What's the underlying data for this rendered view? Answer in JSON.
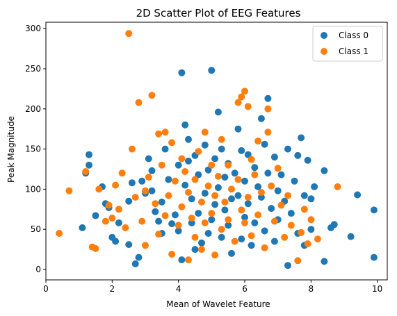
{
  "chart_data": {
    "type": "scatter",
    "title": "2D Scatter Plot of EEG Features",
    "xlabel": "Mean of Wavelet Feature",
    "ylabel": "Peak Magnitude",
    "xlim": [
      0,
      10.3
    ],
    "ylim": [
      -13,
      308
    ],
    "xticks": [
      0,
      2,
      4,
      6,
      8,
      10
    ],
    "yticks": [
      0,
      50,
      100,
      150,
      200,
      250,
      300
    ],
    "grid": false,
    "legend_position": "top-right",
    "series": [
      {
        "name": "Class 0",
        "color": "#1f77b4",
        "points": [
          [
            1.1,
            52
          ],
          [
            1.3,
            130
          ],
          [
            1.3,
            143
          ],
          [
            1.2,
            120
          ],
          [
            1.5,
            67
          ],
          [
            1.7,
            103
          ],
          [
            1.8,
            82
          ],
          [
            1.9,
            77
          ],
          [
            2.0,
            40
          ],
          [
            2.1,
            35
          ],
          [
            2.2,
            58
          ],
          [
            2.5,
            85
          ],
          [
            2.5,
            31
          ],
          [
            2.6,
            108
          ],
          [
            2.7,
            7
          ],
          [
            2.8,
            15
          ],
          [
            2.9,
            110
          ],
          [
            3.0,
            95
          ],
          [
            3.1,
            138
          ],
          [
            3.2,
            123
          ],
          [
            3.2,
            98
          ],
          [
            3.3,
            72
          ],
          [
            3.4,
            60
          ],
          [
            3.5,
            45
          ],
          [
            3.5,
            84
          ],
          [
            3.6,
            150
          ],
          [
            3.7,
            112
          ],
          [
            3.8,
            57
          ],
          [
            3.9,
            68
          ],
          [
            4.0,
            130
          ],
          [
            4.0,
            48
          ],
          [
            4.1,
            245
          ],
          [
            4.1,
            12
          ],
          [
            4.2,
            180
          ],
          [
            4.2,
            105
          ],
          [
            4.3,
            162
          ],
          [
            4.3,
            135
          ],
          [
            4.4,
            58
          ],
          [
            4.4,
            88
          ],
          [
            4.5,
            142
          ],
          [
            4.5,
            25
          ],
          [
            4.6,
            118
          ],
          [
            4.6,
            70
          ],
          [
            4.7,
            33
          ],
          [
            4.8,
            155
          ],
          [
            4.8,
            95
          ],
          [
            4.9,
            124
          ],
          [
            4.9,
            45
          ],
          [
            5.0,
            248
          ],
          [
            5.0,
            62
          ],
          [
            5.1,
            138
          ],
          [
            5.1,
            81
          ],
          [
            5.2,
            196
          ],
          [
            5.2,
            102
          ],
          [
            5.3,
            150
          ],
          [
            5.3,
            40
          ],
          [
            5.4,
            115
          ],
          [
            5.4,
            74
          ],
          [
            5.5,
            132
          ],
          [
            5.5,
            55
          ],
          [
            5.6,
            88
          ],
          [
            5.6,
            20
          ],
          [
            5.7,
            120
          ],
          [
            5.8,
            175
          ],
          [
            5.8,
            92
          ],
          [
            5.9,
            148
          ],
          [
            5.9,
            38
          ],
          [
            6.0,
            110
          ],
          [
            6.0,
            65
          ],
          [
            6.1,
            143
          ],
          [
            6.1,
            82
          ],
          [
            6.2,
            30
          ],
          [
            6.3,
            127
          ],
          [
            6.3,
            58
          ],
          [
            6.4,
            103
          ],
          [
            6.5,
            188
          ],
          [
            6.5,
            90
          ],
          [
            6.6,
            156
          ],
          [
            6.6,
            48
          ],
          [
            6.7,
            213
          ],
          [
            6.7,
            120
          ],
          [
            6.8,
            76
          ],
          [
            6.9,
            140
          ],
          [
            6.9,
            35
          ],
          [
            7.0,
            98
          ],
          [
            7.0,
            62
          ],
          [
            7.1,
            118
          ],
          [
            7.2,
            85
          ],
          [
            7.3,
            5
          ],
          [
            7.3,
            150
          ],
          [
            7.4,
            70
          ],
          [
            7.5,
            110
          ],
          [
            7.6,
            142
          ],
          [
            7.6,
            45
          ],
          [
            7.7,
            164
          ],
          [
            7.8,
            92
          ],
          [
            7.8,
            30
          ],
          [
            7.9,
            136
          ],
          [
            8.0,
            88
          ],
          [
            8.0,
            50
          ],
          [
            8.1,
            103
          ],
          [
            8.4,
            123
          ],
          [
            8.4,
            10
          ],
          [
            8.6,
            52
          ],
          [
            8.7,
            56
          ],
          [
            9.2,
            41
          ],
          [
            9.4,
            93
          ],
          [
            9.9,
            74
          ],
          [
            9.9,
            15
          ]
        ]
      },
      {
        "name": "Class 1",
        "color": "#ff7f0e",
        "points": [
          [
            0.4,
            45
          ],
          [
            0.7,
            98
          ],
          [
            1.2,
            122
          ],
          [
            1.4,
            28
          ],
          [
            1.5,
            26
          ],
          [
            1.6,
            100
          ],
          [
            1.8,
            60
          ],
          [
            1.9,
            80
          ],
          [
            2.0,
            64
          ],
          [
            2.1,
            105
          ],
          [
            2.2,
            75
          ],
          [
            2.3,
            120
          ],
          [
            2.4,
            52
          ],
          [
            2.5,
            294
          ],
          [
            2.6,
            150
          ],
          [
            2.7,
            90
          ],
          [
            2.8,
            208
          ],
          [
            2.9,
            60
          ],
          [
            3.0,
            30
          ],
          [
            3.0,
            98
          ],
          [
            3.1,
            115
          ],
          [
            3.2,
            217
          ],
          [
            3.3,
            82
          ],
          [
            3.4,
            169
          ],
          [
            3.4,
            44
          ],
          [
            3.5,
            130
          ],
          [
            3.6,
            171
          ],
          [
            3.6,
            67
          ],
          [
            3.7,
            92
          ],
          [
            3.8,
            158
          ],
          [
            3.8,
            19
          ],
          [
            3.9,
            110
          ],
          [
            4.0,
            55
          ],
          [
            4.1,
            138
          ],
          [
            4.1,
            78
          ],
          [
            4.2,
            122
          ],
          [
            4.3,
            12
          ],
          [
            4.3,
            96
          ],
          [
            4.4,
            64
          ],
          [
            4.5,
            112
          ],
          [
            4.5,
            40
          ],
          [
            4.6,
            147
          ],
          [
            4.7,
            84
          ],
          [
            4.7,
            25
          ],
          [
            4.8,
            171
          ],
          [
            4.8,
            58
          ],
          [
            4.9,
            104
          ],
          [
            5.0,
            130
          ],
          [
            5.0,
            70
          ],
          [
            5.1,
            92
          ],
          [
            5.1,
            18
          ],
          [
            5.2,
            116
          ],
          [
            5.3,
            162
          ],
          [
            5.3,
            50
          ],
          [
            5.4,
            84
          ],
          [
            5.5,
            130
          ],
          [
            5.5,
            62
          ],
          [
            5.6,
            100
          ],
          [
            5.7,
            35
          ],
          [
            5.8,
            208
          ],
          [
            5.8,
            112
          ],
          [
            5.9,
            215
          ],
          [
            5.9,
            74
          ],
          [
            6.0,
            222
          ],
          [
            6.0,
            58
          ],
          [
            6.1,
            203
          ],
          [
            6.1,
            90
          ],
          [
            6.2,
            137
          ],
          [
            6.2,
            42
          ],
          [
            6.3,
            118
          ],
          [
            6.4,
            160
          ],
          [
            6.4,
            68
          ],
          [
            6.5,
            96
          ],
          [
            6.6,
            27
          ],
          [
            6.7,
            171
          ],
          [
            6.7,
            200
          ],
          [
            6.8,
            104
          ],
          [
            6.9,
            60
          ],
          [
            7.0,
            126
          ],
          [
            7.1,
            80
          ],
          [
            7.2,
            40
          ],
          [
            7.3,
            92
          ],
          [
            7.4,
            55
          ],
          [
            7.6,
            11
          ],
          [
            7.7,
            46
          ],
          [
            7.8,
            75
          ],
          [
            7.9,
            32
          ],
          [
            8.0,
            62
          ],
          [
            8.2,
            38
          ],
          [
            8.8,
            103
          ]
        ]
      }
    ]
  }
}
